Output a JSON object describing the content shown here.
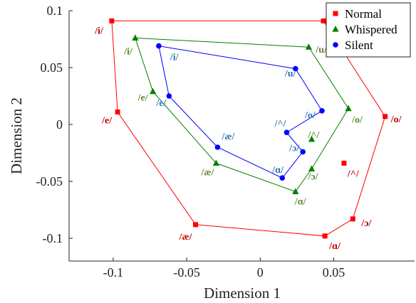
{
  "chart_data": {
    "type": "scatter",
    "xlabel": "Dimension 1",
    "ylabel": "Dimension 2",
    "xlim": [
      -0.13,
      0.105
    ],
    "ylim": [
      -0.12,
      0.1
    ],
    "xticks": [
      -0.1,
      -0.05,
      0,
      0.05
    ],
    "xtick_labels": [
      "-0.1",
      "-0.05",
      "0",
      "0.05"
    ],
    "yticks": [
      -0.1,
      -0.05,
      0,
      0.05,
      0.1
    ],
    "ytick_labels": [
      "-0.1",
      "-0.05",
      "0",
      "0.05",
      "0.1"
    ],
    "grid": false,
    "legend_position": "top-right",
    "series": [
      {
        "name": "Normal",
        "marker": "square",
        "color": "#ff0000",
        "label_color": "#c00000",
        "points": [
          {
            "label": "/i/",
            "x": -0.101,
            "y": 0.091
          },
          {
            "label": "/u/",
            "x": 0.043,
            "y": 0.091
          },
          {
            "label": "/o/",
            "x": 0.085,
            "y": 0.007
          },
          {
            "label": "/ɔ/",
            "x": 0.063,
            "y": -0.083
          },
          {
            "label": "/ɑ/",
            "x": 0.044,
            "y": -0.098
          },
          {
            "label": "/æ/",
            "x": -0.044,
            "y": -0.088
          },
          {
            "label": "/e/",
            "x": -0.097,
            "y": 0.011
          },
          {
            "label": "/^/",
            "x": 0.057,
            "y": -0.034
          }
        ],
        "hull_order": [
          0,
          1,
          2,
          3,
          4,
          5,
          6
        ]
      },
      {
        "name": "Whispered",
        "marker": "triangle",
        "color": "#008000",
        "label_color": "#5c8a2e",
        "points": [
          {
            "label": "/i/",
            "x": -0.085,
            "y": 0.076
          },
          {
            "label": "/u/",
            "x": 0.033,
            "y": 0.068
          },
          {
            "label": "/o/",
            "x": 0.06,
            "y": 0.014
          },
          {
            "label": "/^/",
            "x": 0.035,
            "y": -0.013
          },
          {
            "label": "/ɔ/",
            "x": 0.035,
            "y": -0.039
          },
          {
            "label": "/ɑ/",
            "x": 0.024,
            "y": -0.059
          },
          {
            "label": "/æ/",
            "x": -0.03,
            "y": -0.034
          },
          {
            "label": "/e/",
            "x": -0.073,
            "y": 0.029
          }
        ],
        "hull_order": [
          0,
          1,
          2,
          4,
          5,
          6,
          7
        ]
      },
      {
        "name": "Silent",
        "marker": "circle",
        "color": "#0000ff",
        "label_color": "#2e75b6",
        "points": [
          {
            "label": "/i/",
            "x": -0.069,
            "y": 0.069
          },
          {
            "label": "/u/",
            "x": 0.024,
            "y": 0.049
          },
          {
            "label": "/o/",
            "x": 0.042,
            "y": 0.012
          },
          {
            "label": "/^/",
            "x": 0.018,
            "y": -0.007
          },
          {
            "label": "/ɔ/",
            "x": 0.029,
            "y": -0.024
          },
          {
            "label": "/ɑ/",
            "x": 0.015,
            "y": -0.047
          },
          {
            "label": "/æ/",
            "x": -0.029,
            "y": -0.02
          },
          {
            "label": "/e/",
            "x": -0.062,
            "y": 0.025
          }
        ],
        "hull_order": [
          0,
          1,
          2,
          3,
          4,
          5,
          6,
          7
        ]
      }
    ]
  }
}
